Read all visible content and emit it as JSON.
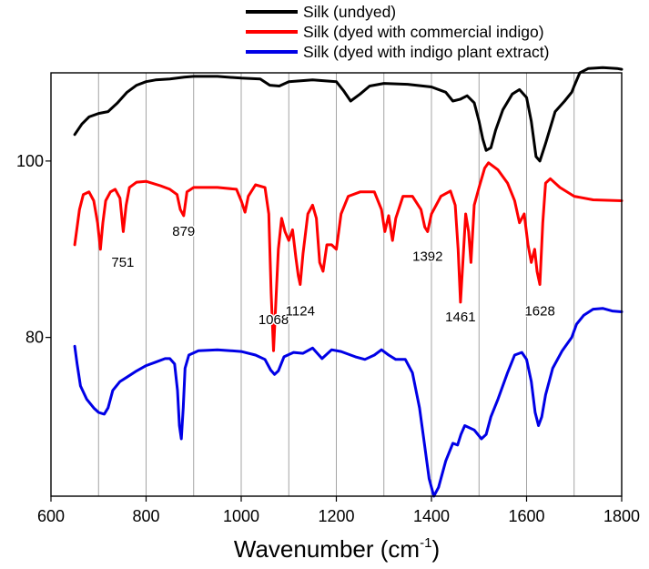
{
  "chart_data": {
    "type": "line",
    "title": "",
    "xlabel": "Wavenumber (cm",
    "xlabel_superscript": "-1",
    "xlabel_close": ")",
    "ylabel": "",
    "xlim": [
      600,
      1800
    ],
    "ylim": [
      62,
      110
    ],
    "x_ticks": [
      600,
      800,
      1000,
      1200,
      1400,
      1600,
      1800
    ],
    "x_tick_labels": [
      "600",
      "800",
      "1000",
      "1200",
      "1400",
      "1600",
      "1800"
    ],
    "x_vertical_gridlines": [
      700,
      800,
      900,
      1000,
      1100,
      1200,
      1300,
      1400,
      1500,
      1600,
      1700
    ],
    "y_ticks": [
      80,
      100
    ],
    "y_tick_labels": [
      "80",
      "100"
    ],
    "legend_position": "top",
    "series": [
      {
        "name": "Silk (undyed)",
        "color": "#000000",
        "points": [
          [
            650,
            103.0
          ],
          [
            665,
            104.2
          ],
          [
            680,
            105.0
          ],
          [
            700,
            105.4
          ],
          [
            720,
            105.6
          ],
          [
            740,
            106.6
          ],
          [
            760,
            107.8
          ],
          [
            780,
            108.6
          ],
          [
            800,
            109.0
          ],
          [
            820,
            109.2
          ],
          [
            850,
            109.3
          ],
          [
            880,
            109.5
          ],
          [
            900,
            109.6
          ],
          [
            950,
            109.6
          ],
          [
            1000,
            109.4
          ],
          [
            1040,
            109.3
          ],
          [
            1060,
            108.6
          ],
          [
            1080,
            108.5
          ],
          [
            1100,
            109.0
          ],
          [
            1150,
            109.2
          ],
          [
            1200,
            109.0
          ],
          [
            1215,
            108.0
          ],
          [
            1230,
            106.8
          ],
          [
            1250,
            107.6
          ],
          [
            1270,
            108.5
          ],
          [
            1300,
            108.8
          ],
          [
            1350,
            108.7
          ],
          [
            1400,
            108.4
          ],
          [
            1430,
            107.8
          ],
          [
            1445,
            106.8
          ],
          [
            1460,
            107.0
          ],
          [
            1475,
            107.4
          ],
          [
            1490,
            106.6
          ],
          [
            1500,
            104.5
          ],
          [
            1508,
            102.5
          ],
          [
            1515,
            101.2
          ],
          [
            1525,
            101.5
          ],
          [
            1535,
            103.5
          ],
          [
            1550,
            105.8
          ],
          [
            1570,
            107.6
          ],
          [
            1585,
            108.1
          ],
          [
            1600,
            107.2
          ],
          [
            1610,
            104.5
          ],
          [
            1620,
            100.5
          ],
          [
            1628,
            100.0
          ],
          [
            1640,
            102.0
          ],
          [
            1660,
            105.6
          ],
          [
            1680,
            106.8
          ],
          [
            1695,
            107.8
          ],
          [
            1700,
            108.5
          ],
          [
            1712,
            110.0
          ],
          [
            1730,
            110.5
          ],
          [
            1760,
            110.6
          ],
          [
            1790,
            110.5
          ],
          [
            1800,
            110.4
          ]
        ]
      },
      {
        "name": "Silk (dyed with commercial indigo)",
        "color": "#ff0000",
        "points": [
          [
            650,
            90.5
          ],
          [
            660,
            94.5
          ],
          [
            668,
            96.2
          ],
          [
            680,
            96.5
          ],
          [
            690,
            95.5
          ],
          [
            698,
            93.0
          ],
          [
            704,
            90.0
          ],
          [
            709,
            93.0
          ],
          [
            715,
            95.5
          ],
          [
            725,
            96.5
          ],
          [
            735,
            96.8
          ],
          [
            745,
            95.8
          ],
          [
            752,
            92.0
          ],
          [
            758,
            95.0
          ],
          [
            765,
            97.0
          ],
          [
            780,
            97.6
          ],
          [
            800,
            97.7
          ],
          [
            830,
            97.2
          ],
          [
            850,
            96.8
          ],
          [
            865,
            96.2
          ],
          [
            872,
            94.5
          ],
          [
            879,
            93.8
          ],
          [
            886,
            96.5
          ],
          [
            900,
            97.0
          ],
          [
            950,
            97.0
          ],
          [
            990,
            96.8
          ],
          [
            1000,
            95.5
          ],
          [
            1008,
            94.2
          ],
          [
            1015,
            96.0
          ],
          [
            1030,
            97.3
          ],
          [
            1050,
            97.0
          ],
          [
            1058,
            94.0
          ],
          [
            1063,
            85.0
          ],
          [
            1068,
            78.5
          ],
          [
            1072,
            83.0
          ],
          [
            1078,
            90.0
          ],
          [
            1085,
            93.5
          ],
          [
            1092,
            92.0
          ],
          [
            1100,
            91.0
          ],
          [
            1108,
            92.2
          ],
          [
            1115,
            89.0
          ],
          [
            1120,
            87.0
          ],
          [
            1124,
            86.0
          ],
          [
            1130,
            89.5
          ],
          [
            1140,
            94.0
          ],
          [
            1150,
            95.0
          ],
          [
            1158,
            93.5
          ],
          [
            1165,
            88.5
          ],
          [
            1172,
            87.5
          ],
          [
            1180,
            90.5
          ],
          [
            1190,
            90.5
          ],
          [
            1200,
            90.0
          ],
          [
            1210,
            94.0
          ],
          [
            1225,
            96.0
          ],
          [
            1250,
            96.5
          ],
          [
            1280,
            96.5
          ],
          [
            1295,
            94.5
          ],
          [
            1302,
            92.0
          ],
          [
            1310,
            93.8
          ],
          [
            1318,
            91.0
          ],
          [
            1325,
            93.5
          ],
          [
            1340,
            96.0
          ],
          [
            1360,
            96.0
          ],
          [
            1378,
            94.5
          ],
          [
            1386,
            92.5
          ],
          [
            1392,
            92.0
          ],
          [
            1400,
            94.0
          ],
          [
            1420,
            96.0
          ],
          [
            1440,
            96.6
          ],
          [
            1450,
            95.0
          ],
          [
            1456,
            90.0
          ],
          [
            1461,
            84.0
          ],
          [
            1466,
            88.5
          ],
          [
            1472,
            94.0
          ],
          [
            1478,
            92.0
          ],
          [
            1483,
            88.5
          ],
          [
            1490,
            95.0
          ],
          [
            1500,
            97.0
          ],
          [
            1512,
            99.2
          ],
          [
            1520,
            99.8
          ],
          [
            1540,
            99.0
          ],
          [
            1560,
            97.5
          ],
          [
            1575,
            95.5
          ],
          [
            1585,
            93.0
          ],
          [
            1595,
            94.0
          ],
          [
            1603,
            90.5
          ],
          [
            1610,
            88.5
          ],
          [
            1617,
            90.0
          ],
          [
            1622,
            87.5
          ],
          [
            1628,
            86.0
          ],
          [
            1634,
            93.0
          ],
          [
            1640,
            97.5
          ],
          [
            1650,
            98.0
          ],
          [
            1670,
            97.0
          ],
          [
            1700,
            96.0
          ],
          [
            1740,
            95.6
          ],
          [
            1800,
            95.5
          ]
        ]
      },
      {
        "name": "Silk (dyed with indigo plant extract)",
        "color": "#0000e6",
        "points": [
          [
            650,
            79.0
          ],
          [
            655,
            77.0
          ],
          [
            662,
            74.5
          ],
          [
            675,
            73.0
          ],
          [
            690,
            72.0
          ],
          [
            700,
            71.5
          ],
          [
            712,
            71.3
          ],
          [
            720,
            72.0
          ],
          [
            730,
            74.0
          ],
          [
            745,
            75.0
          ],
          [
            760,
            75.5
          ],
          [
            780,
            76.2
          ],
          [
            800,
            76.8
          ],
          [
            820,
            77.2
          ],
          [
            840,
            77.6
          ],
          [
            850,
            77.6
          ],
          [
            860,
            77.0
          ],
          [
            866,
            74.0
          ],
          [
            870,
            70.0
          ],
          [
            874,
            68.5
          ],
          [
            878,
            72.0
          ],
          [
            882,
            76.5
          ],
          [
            890,
            78.0
          ],
          [
            910,
            78.5
          ],
          [
            950,
            78.6
          ],
          [
            1000,
            78.4
          ],
          [
            1030,
            78.0
          ],
          [
            1050,
            77.5
          ],
          [
            1062,
            76.3
          ],
          [
            1070,
            75.8
          ],
          [
            1078,
            76.2
          ],
          [
            1090,
            77.8
          ],
          [
            1110,
            78.3
          ],
          [
            1130,
            78.2
          ],
          [
            1150,
            78.8
          ],
          [
            1170,
            77.6
          ],
          [
            1190,
            78.6
          ],
          [
            1210,
            78.4
          ],
          [
            1240,
            77.8
          ],
          [
            1260,
            77.5
          ],
          [
            1280,
            78.0
          ],
          [
            1295,
            78.6
          ],
          [
            1310,
            78.0
          ],
          [
            1325,
            77.5
          ],
          [
            1345,
            77.5
          ],
          [
            1360,
            76.0
          ],
          [
            1375,
            72.0
          ],
          [
            1385,
            68.0
          ],
          [
            1395,
            64.0
          ],
          [
            1405,
            62.0
          ],
          [
            1415,
            63.0
          ],
          [
            1430,
            66.0
          ],
          [
            1445,
            68.0
          ],
          [
            1455,
            67.8
          ],
          [
            1462,
            69.0
          ],
          [
            1470,
            70.0
          ],
          [
            1490,
            69.5
          ],
          [
            1505,
            68.5
          ],
          [
            1515,
            69.0
          ],
          [
            1525,
            71.0
          ],
          [
            1540,
            73.0
          ],
          [
            1560,
            76.0
          ],
          [
            1575,
            78.0
          ],
          [
            1590,
            78.3
          ],
          [
            1600,
            77.5
          ],
          [
            1610,
            75.0
          ],
          [
            1618,
            71.5
          ],
          [
            1625,
            70.0
          ],
          [
            1632,
            71.0
          ],
          [
            1640,
            73.5
          ],
          [
            1655,
            76.5
          ],
          [
            1675,
            78.5
          ],
          [
            1695,
            80.0
          ],
          [
            1705,
            81.5
          ],
          [
            1720,
            82.5
          ],
          [
            1740,
            83.2
          ],
          [
            1760,
            83.3
          ],
          [
            1780,
            83.0
          ],
          [
            1800,
            82.9
          ]
        ]
      }
    ],
    "annotations": [
      {
        "text": "751",
        "x": 751,
        "y": 88.0
      },
      {
        "text": "879",
        "x": 879,
        "y": 91.5
      },
      {
        "text": "1068",
        "x": 1068,
        "y": 81.5
      },
      {
        "text": "1124",
        "x": 1124,
        "y": 82.5
      },
      {
        "text": "1392",
        "x": 1392,
        "y": 88.7
      },
      {
        "text": "1461",
        "x": 1461,
        "y": 81.8
      },
      {
        "text": "1628",
        "x": 1628,
        "y": 82.5
      }
    ]
  }
}
